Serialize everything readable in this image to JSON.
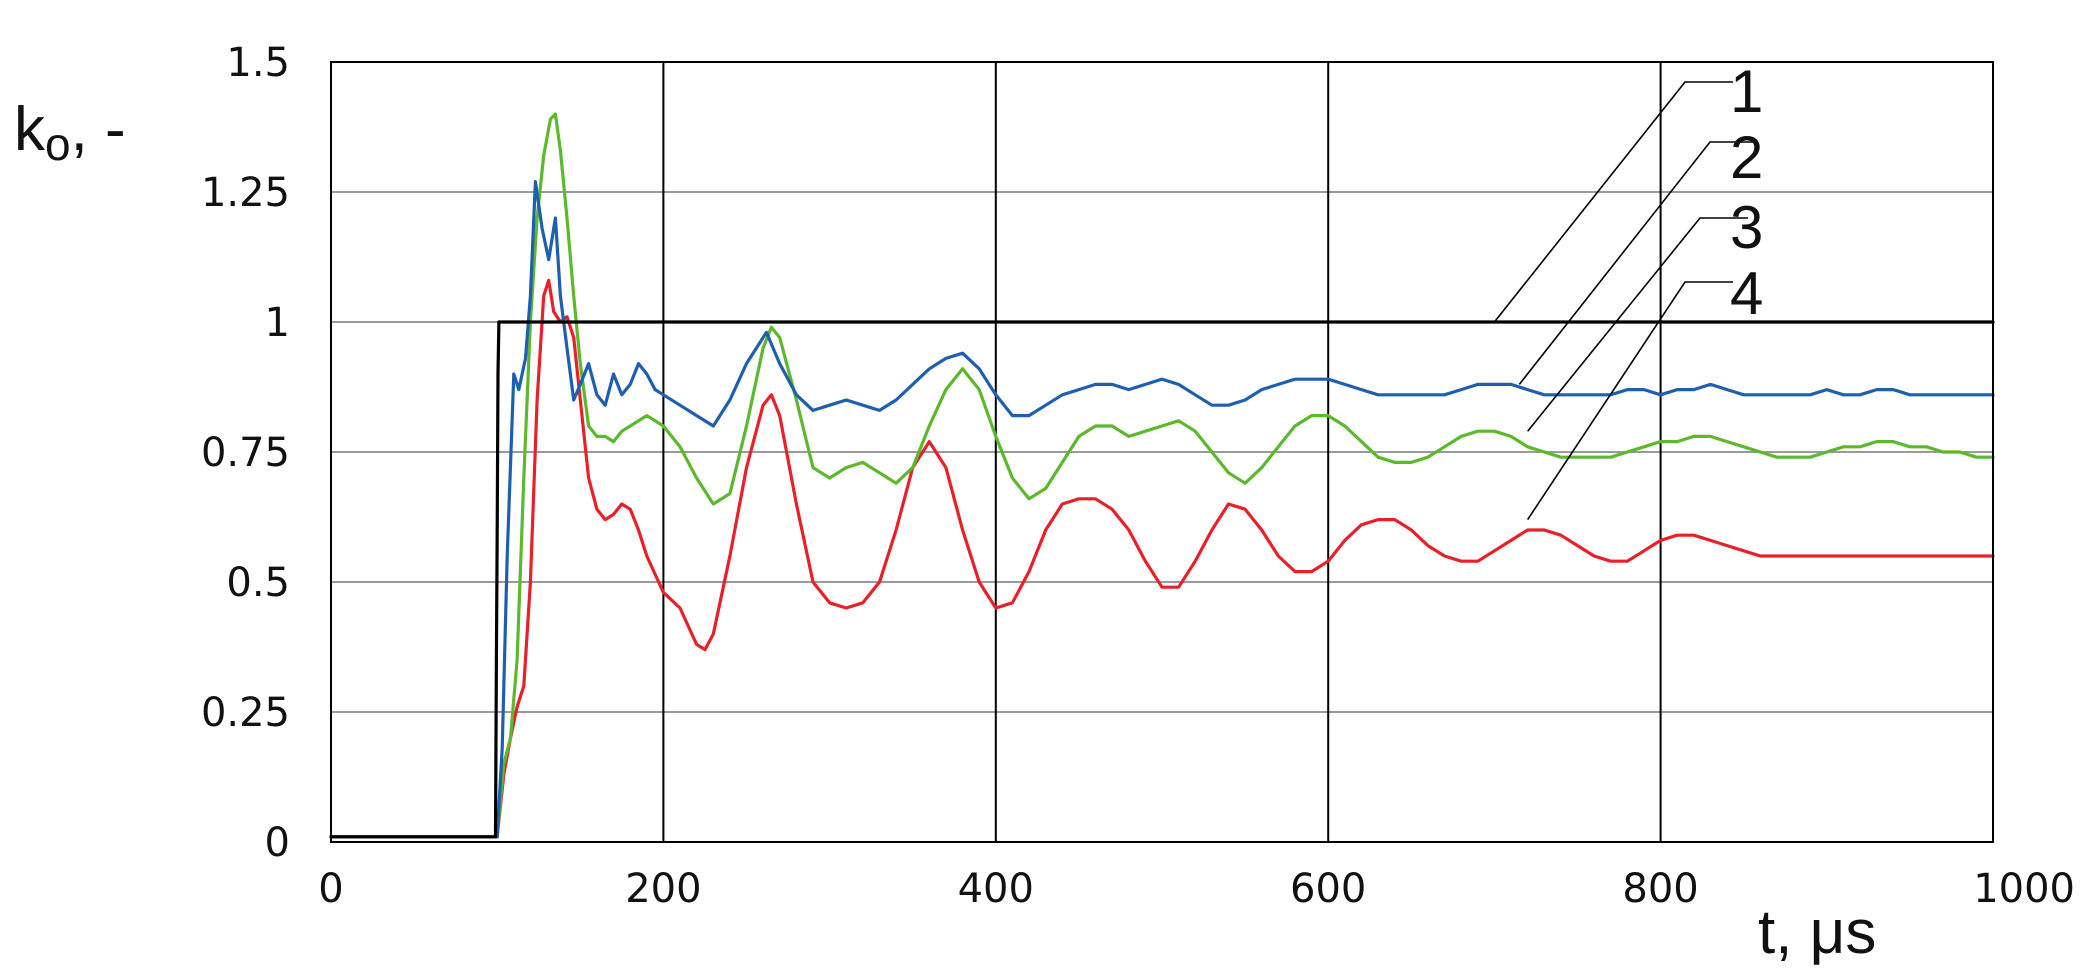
{
  "chart_data": {
    "type": "line",
    "title": "",
    "ylabel": "k",
    "ylabel_subscript": "o",
    "ylabel_suffix": ", -",
    "xlabel": "t, μs",
    "xlim": [
      0,
      1000
    ],
    "ylim": [
      0,
      1.5
    ],
    "x_ticks": [
      0,
      200,
      400,
      600,
      800,
      1000
    ],
    "x_tick_labels": [
      "0",
      "200",
      "400",
      "600",
      "800",
      "1000"
    ],
    "y_ticks": [
      0,
      0.25,
      0.5,
      0.75,
      1,
      1.25,
      1.5
    ],
    "y_tick_labels": [
      "0",
      "0.25",
      "0.5",
      "0.75",
      "1",
      "1.25",
      "1.5"
    ],
    "grid": true,
    "legend": "callout labels with leader lines, top-right",
    "series": [
      {
        "name": "1",
        "color": "#000000",
        "x": [
          0,
          99,
          99.5,
          100,
          100.5,
          101,
          120,
          200,
          400,
          600,
          800,
          1000
        ],
        "y": [
          0.01,
          0.01,
          0.35,
          0.6,
          0.9,
          1.0,
          1.0,
          1.0,
          1.0,
          1.0,
          1.0,
          1.0
        ]
      },
      {
        "name": "2",
        "color": "#1f5fb0",
        "x": [
          0,
          100,
          103,
          106,
          110,
          113,
          117,
          120,
          123,
          127,
          131,
          135,
          138,
          142,
          146,
          150,
          155,
          160,
          165,
          170,
          175,
          180,
          185,
          190,
          195,
          200,
          210,
          220,
          230,
          240,
          250,
          262,
          270,
          280,
          290,
          300,
          310,
          320,
          330,
          340,
          350,
          360,
          370,
          380,
          390,
          400,
          410,
          420,
          430,
          440,
          450,
          460,
          470,
          480,
          490,
          500,
          510,
          520,
          530,
          540,
          550,
          560,
          570,
          580,
          590,
          600,
          610,
          620,
          630,
          640,
          650,
          660,
          670,
          680,
          690,
          700,
          710,
          720,
          730,
          740,
          750,
          760,
          770,
          780,
          790,
          800,
          810,
          820,
          830,
          840,
          850,
          860,
          870,
          880,
          890,
          900,
          910,
          920,
          930,
          940,
          950,
          960,
          970,
          980,
          990,
          1000
        ],
        "y": [
          0.01,
          0.01,
          0.18,
          0.55,
          0.9,
          0.87,
          0.93,
          1.05,
          1.27,
          1.18,
          1.12,
          1.2,
          1.05,
          0.95,
          0.85,
          0.88,
          0.92,
          0.86,
          0.84,
          0.9,
          0.86,
          0.88,
          0.92,
          0.9,
          0.87,
          0.86,
          0.84,
          0.82,
          0.8,
          0.85,
          0.92,
          0.98,
          0.92,
          0.86,
          0.83,
          0.84,
          0.85,
          0.84,
          0.83,
          0.85,
          0.88,
          0.91,
          0.93,
          0.94,
          0.91,
          0.86,
          0.82,
          0.82,
          0.84,
          0.86,
          0.87,
          0.88,
          0.88,
          0.87,
          0.88,
          0.89,
          0.88,
          0.86,
          0.84,
          0.84,
          0.85,
          0.87,
          0.88,
          0.89,
          0.89,
          0.89,
          0.88,
          0.87,
          0.86,
          0.86,
          0.86,
          0.86,
          0.86,
          0.87,
          0.88,
          0.88,
          0.88,
          0.87,
          0.86,
          0.86,
          0.86,
          0.86,
          0.86,
          0.87,
          0.87,
          0.86,
          0.87,
          0.87,
          0.88,
          0.87,
          0.86,
          0.86,
          0.86,
          0.86,
          0.86,
          0.87,
          0.86,
          0.86,
          0.87,
          0.87,
          0.86,
          0.86,
          0.86,
          0.86,
          0.86,
          0.86
        ]
      },
      {
        "name": "3",
        "color": "#5cb82c",
        "x": [
          0,
          100,
          104,
          108,
          112,
          116,
          120,
          124,
          128,
          132,
          135,
          138,
          142,
          146,
          150,
          155,
          160,
          165,
          170,
          175,
          180,
          190,
          200,
          210,
          220,
          230,
          240,
          250,
          260,
          265,
          270,
          280,
          290,
          300,
          310,
          320,
          330,
          340,
          350,
          360,
          370,
          380,
          390,
          400,
          410,
          420,
          430,
          440,
          450,
          460,
          470,
          480,
          490,
          500,
          510,
          520,
          530,
          540,
          550,
          560,
          570,
          580,
          590,
          600,
          610,
          620,
          630,
          640,
          650,
          660,
          670,
          680,
          690,
          700,
          710,
          720,
          730,
          740,
          750,
          760,
          770,
          780,
          790,
          800,
          810,
          820,
          830,
          840,
          850,
          860,
          870,
          880,
          890,
          900,
          910,
          920,
          930,
          940,
          950,
          960,
          970,
          980,
          990,
          1000
        ],
        "y": [
          0.01,
          0.01,
          0.15,
          0.2,
          0.35,
          0.7,
          1.0,
          1.2,
          1.32,
          1.39,
          1.4,
          1.33,
          1.2,
          1.05,
          0.92,
          0.8,
          0.78,
          0.78,
          0.77,
          0.79,
          0.8,
          0.82,
          0.8,
          0.76,
          0.7,
          0.65,
          0.67,
          0.8,
          0.95,
          0.99,
          0.97,
          0.85,
          0.72,
          0.7,
          0.72,
          0.73,
          0.71,
          0.69,
          0.72,
          0.8,
          0.87,
          0.91,
          0.87,
          0.78,
          0.7,
          0.66,
          0.68,
          0.73,
          0.78,
          0.8,
          0.8,
          0.78,
          0.79,
          0.8,
          0.81,
          0.79,
          0.75,
          0.71,
          0.69,
          0.72,
          0.76,
          0.8,
          0.82,
          0.82,
          0.8,
          0.77,
          0.74,
          0.73,
          0.73,
          0.74,
          0.76,
          0.78,
          0.79,
          0.79,
          0.78,
          0.76,
          0.75,
          0.74,
          0.74,
          0.74,
          0.74,
          0.75,
          0.76,
          0.77,
          0.77,
          0.78,
          0.78,
          0.77,
          0.76,
          0.75,
          0.74,
          0.74,
          0.74,
          0.75,
          0.76,
          0.76,
          0.77,
          0.77,
          0.76,
          0.76,
          0.75,
          0.75,
          0.74,
          0.74
        ]
      },
      {
        "name": "4",
        "color": "#e8202a",
        "x": [
          0,
          100,
          104,
          108,
          112,
          116,
          120,
          124,
          128,
          131,
          134,
          138,
          142,
          146,
          150,
          155,
          160,
          165,
          170,
          175,
          180,
          185,
          190,
          200,
          210,
          220,
          225,
          230,
          240,
          250,
          260,
          265,
          270,
          280,
          290,
          300,
          310,
          320,
          330,
          340,
          350,
          360,
          370,
          380,
          390,
          400,
          410,
          420,
          430,
          440,
          450,
          460,
          470,
          480,
          490,
          500,
          510,
          520,
          530,
          540,
          550,
          560,
          570,
          580,
          590,
          600,
          610,
          620,
          630,
          640,
          650,
          660,
          670,
          680,
          690,
          700,
          710,
          720,
          730,
          740,
          750,
          760,
          770,
          780,
          790,
          800,
          810,
          820,
          830,
          840,
          850,
          860,
          870,
          880,
          890,
          900,
          910,
          920,
          930,
          940,
          950,
          960,
          970,
          980,
          990,
          1000
        ],
        "y": [
          0.01,
          0.01,
          0.13,
          0.2,
          0.26,
          0.3,
          0.5,
          0.85,
          1.05,
          1.08,
          1.02,
          1.0,
          1.01,
          0.97,
          0.85,
          0.7,
          0.64,
          0.62,
          0.63,
          0.65,
          0.64,
          0.6,
          0.55,
          0.48,
          0.45,
          0.38,
          0.37,
          0.4,
          0.55,
          0.72,
          0.84,
          0.86,
          0.82,
          0.65,
          0.5,
          0.46,
          0.45,
          0.46,
          0.5,
          0.6,
          0.72,
          0.77,
          0.72,
          0.6,
          0.5,
          0.45,
          0.46,
          0.52,
          0.6,
          0.65,
          0.66,
          0.66,
          0.64,
          0.6,
          0.54,
          0.49,
          0.49,
          0.54,
          0.6,
          0.65,
          0.64,
          0.6,
          0.55,
          0.52,
          0.52,
          0.54,
          0.58,
          0.61,
          0.62,
          0.62,
          0.6,
          0.57,
          0.55,
          0.54,
          0.54,
          0.56,
          0.58,
          0.6,
          0.6,
          0.59,
          0.57,
          0.55,
          0.54,
          0.54,
          0.56,
          0.58,
          0.59,
          0.59,
          0.58,
          0.57,
          0.56,
          0.55,
          0.55,
          0.55,
          0.55,
          0.55,
          0.55,
          0.55,
          0.55,
          0.55,
          0.55,
          0.55,
          0.55,
          0.55,
          0.55,
          0.55
        ]
      }
    ]
  }
}
